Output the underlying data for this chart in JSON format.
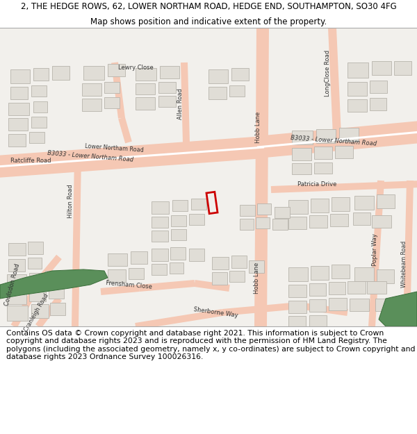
{
  "title_line1": "2, THE HEDGE ROWS, 62, LOWER NORTHAM ROAD, HEDGE END, SOUTHAMPTON, SO30 4FG",
  "title_line2": "Map shows position and indicative extent of the property.",
  "footer": "Contains OS data © Crown copyright and database right 2021. This information is subject to Crown copyright and database rights 2023 and is reproduced with the permission of HM Land Registry. The polygons (including the associated geometry, namely x, y co-ordinates) are subject to Crown copyright and database rights 2023 Ordnance Survey 100026316.",
  "bg_color": "#f2f0ec",
  "road_color": "#f5c8b4",
  "building_color": "#e0ddd6",
  "building_stroke": "#b8b4ac",
  "green_color": "#5a8f5a",
  "plot_color": "#cc0000",
  "title_fontsize": 8.5,
  "subtitle_fontsize": 8.5,
  "footer_fontsize": 7.8,
  "label_fontsize": 6.0
}
